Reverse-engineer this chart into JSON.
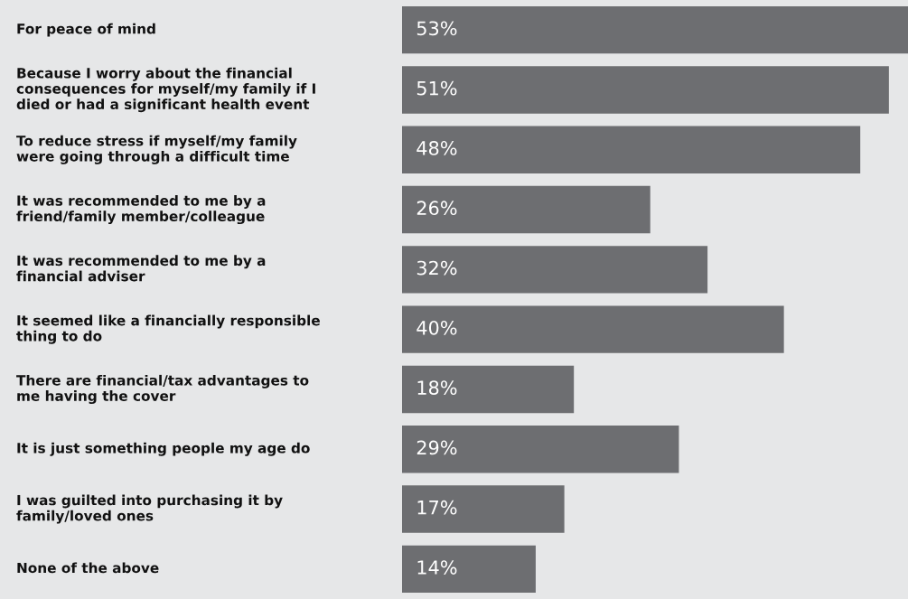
{
  "chart_data": {
    "type": "bar",
    "orientation": "horizontal",
    "categories": [
      "For peace of mind",
      "Because I worry about the financial\nconsequences for myself/my family if I\ndied or had a significant health event",
      "To reduce stress if myself/my family\nwere going through a difficult time",
      "It was recommended to me by a\nfriend/family member/colleague",
      "It was recommended to me by a\nfinancial adviser",
      "It seemed like a financially responsible\nthing to do",
      "There are financial/tax advantages to\nme having the cover",
      "It is just something people my age do",
      "I was guilted into purchasing it by\nfamily/loved ones",
      "None of the above"
    ],
    "values": [
      53,
      51,
      48,
      26,
      32,
      40,
      18,
      29,
      17,
      14
    ],
    "value_labels": [
      "53%",
      "51%",
      "48%",
      "26%",
      "32%",
      "40%",
      "18%",
      "29%",
      "17%",
      "14%"
    ],
    "color": "#6d6e71"
  }
}
